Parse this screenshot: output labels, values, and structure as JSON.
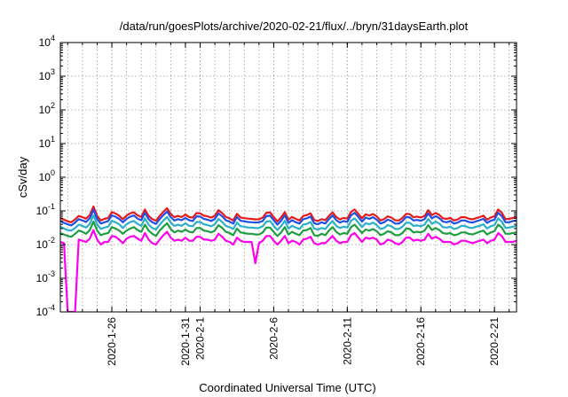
{
  "chart_data": {
    "type": "line",
    "title": "/data/run/goesPlots/archive/2020-02-21/flux/../bryn/31daysEarth.plot",
    "xlabel": "Coordinated Universal Time (UTC)",
    "ylabel": "cSv/day",
    "y_scale": "log",
    "ylim": [
      0.0001,
      10000
    ],
    "xlim": [
      "2020-01-22T12:00",
      "2020-02-22T12:00"
    ],
    "y_ticks": [
      {
        "value": 0.0001,
        "base": "10",
        "exp": "-4"
      },
      {
        "value": 0.001,
        "base": "10",
        "exp": "-3"
      },
      {
        "value": 0.01,
        "base": "10",
        "exp": "-2"
      },
      {
        "value": 0.1,
        "base": "10",
        "exp": "-1"
      },
      {
        "value": 1,
        "base": "10",
        "exp": "0"
      },
      {
        "value": 10,
        "base": "10",
        "exp": "1"
      },
      {
        "value": 100,
        "base": "10",
        "exp": "2"
      },
      {
        "value": 1000,
        "base": "10",
        "exp": "3"
      },
      {
        "value": 10000,
        "base": "10",
        "exp": "4"
      }
    ],
    "x_ticks": [
      {
        "date": "2020-01-26",
        "label": "2020-1-26"
      },
      {
        "date": "2020-01-31",
        "label": "2020-1-31"
      },
      {
        "date": "2020-02-01",
        "label": "2020-2-1"
      },
      {
        "date": "2020-02-06",
        "label": "2020-2-6"
      },
      {
        "date": "2020-02-11",
        "label": "2020-2-11"
      },
      {
        "date": "2020-02-16",
        "label": "2020-2-16"
      },
      {
        "date": "2020-02-21",
        "label": "2020-2-21"
      }
    ],
    "grid": true,
    "legend": "none",
    "series": [
      {
        "color": "#e41a1c",
        "x_start": "2020-01-22T12:00",
        "step_hours": 6,
        "values": [
          0.062,
          0.055,
          0.049,
          0.046,
          0.056,
          0.071,
          0.065,
          0.059,
          0.075,
          0.135,
          0.071,
          0.052,
          0.058,
          0.062,
          0.092,
          0.084,
          0.072,
          0.057,
          0.073,
          0.085,
          0.091,
          0.074,
          0.066,
          0.11,
          0.071,
          0.057,
          0.051,
          0.071,
          0.094,
          0.12,
          0.081,
          0.065,
          0.071,
          0.066,
          0.078,
          0.066,
          0.063,
          0.086,
          0.085,
          0.072,
          0.069,
          0.063,
          0.072,
          0.105,
          0.086,
          0.066,
          0.06,
          0.052,
          0.082,
          0.064,
          0.061,
          0.059,
          0.058,
          0.056,
          0.057,
          0.063,
          0.088,
          0.09,
          0.066,
          0.049,
          0.064,
          0.092,
          0.055,
          0.066,
          0.058,
          0.052,
          0.071,
          0.075,
          0.085,
          0.054,
          0.05,
          0.057,
          0.053,
          0.071,
          0.091,
          0.066,
          0.056,
          0.062,
          0.059,
          0.093,
          0.11,
          0.082,
          0.06,
          0.079,
          0.073,
          0.081,
          0.069,
          0.052,
          0.057,
          0.069,
          0.063,
          0.053,
          0.052,
          0.062,
          0.082,
          0.08,
          0.065,
          0.068,
          0.064,
          0.071,
          0.105,
          0.075,
          0.087,
          0.076,
          0.06,
          0.058,
          0.062,
          0.052,
          0.056,
          0.065,
          0.065,
          0.059,
          0.056,
          0.061,
          0.066,
          0.072,
          0.055,
          0.064,
          0.069,
          0.11,
          0.088,
          0.057,
          0.058,
          0.062,
          0.065,
          0.071
        ]
      },
      {
        "color": "#1f50e6",
        "x_start": "2020-01-22T12:00",
        "step_hours": 6,
        "values": [
          0.05,
          0.044,
          0.04,
          0.037,
          0.045,
          0.057,
          0.052,
          0.047,
          0.06,
          0.108,
          0.057,
          0.042,
          0.046,
          0.05,
          0.074,
          0.067,
          0.058,
          0.046,
          0.058,
          0.068,
          0.073,
          0.059,
          0.053,
          0.088,
          0.057,
          0.046,
          0.041,
          0.057,
          0.075,
          0.096,
          0.065,
          0.052,
          0.057,
          0.053,
          0.062,
          0.053,
          0.05,
          0.069,
          0.068,
          0.058,
          0.055,
          0.05,
          0.058,
          0.084,
          0.069,
          0.053,
          0.048,
          0.042,
          0.066,
          0.051,
          0.049,
          0.047,
          0.046,
          0.045,
          0.046,
          0.05,
          0.07,
          0.072,
          0.053,
          0.039,
          0.051,
          0.074,
          0.044,
          0.053,
          0.046,
          0.042,
          0.057,
          0.06,
          0.068,
          0.043,
          0.04,
          0.046,
          0.042,
          0.057,
          0.073,
          0.053,
          0.045,
          0.05,
          0.047,
          0.074,
          0.088,
          0.066,
          0.048,
          0.063,
          0.058,
          0.065,
          0.055,
          0.042,
          0.046,
          0.055,
          0.05,
          0.042,
          0.042,
          0.05,
          0.066,
          0.064,
          0.052,
          0.054,
          0.051,
          0.057,
          0.084,
          0.06,
          0.07,
          0.061,
          0.048,
          0.046,
          0.05,
          0.042,
          0.045,
          0.052,
          0.052,
          0.047,
          0.045,
          0.049,
          0.053,
          0.058,
          0.044,
          0.051,
          0.055,
          0.088,
          0.07,
          0.046,
          0.046,
          0.05,
          0.052,
          0.057
        ]
      },
      {
        "color": "#2ab0c8",
        "x_start": "2020-01-22T12:00",
        "step_hours": 6,
        "values": [
          0.034,
          0.03,
          0.027,
          0.026,
          0.031,
          0.039,
          0.036,
          0.032,
          0.041,
          0.074,
          0.039,
          0.029,
          0.032,
          0.034,
          0.051,
          0.046,
          0.04,
          0.031,
          0.04,
          0.047,
          0.05,
          0.041,
          0.036,
          0.06,
          0.039,
          0.031,
          0.028,
          0.039,
          0.052,
          0.066,
          0.045,
          0.036,
          0.039,
          0.036,
          0.043,
          0.036,
          0.035,
          0.047,
          0.047,
          0.04,
          0.038,
          0.035,
          0.04,
          0.058,
          0.047,
          0.036,
          0.033,
          0.029,
          0.045,
          0.035,
          0.034,
          0.032,
          0.032,
          0.031,
          0.031,
          0.035,
          0.048,
          0.05,
          0.036,
          0.027,
          0.035,
          0.051,
          0.03,
          0.036,
          0.032,
          0.029,
          0.039,
          0.041,
          0.047,
          0.03,
          0.028,
          0.031,
          0.029,
          0.039,
          0.05,
          0.036,
          0.031,
          0.034,
          0.032,
          0.051,
          0.06,
          0.045,
          0.033,
          0.043,
          0.04,
          0.045,
          0.038,
          0.029,
          0.031,
          0.038,
          0.035,
          0.029,
          0.029,
          0.034,
          0.045,
          0.044,
          0.036,
          0.037,
          0.035,
          0.039,
          0.058,
          0.041,
          0.048,
          0.042,
          0.033,
          0.032,
          0.034,
          0.029,
          0.031,
          0.036,
          0.036,
          0.032,
          0.031,
          0.034,
          0.036,
          0.04,
          0.03,
          0.035,
          0.038,
          0.06,
          0.048,
          0.031,
          0.032,
          0.034,
          0.036,
          0.039
        ]
      },
      {
        "color": "#1e9e40",
        "x_start": "2020-01-22T12:00",
        "step_hours": 6,
        "values": [
          0.022,
          0.02,
          0.018,
          0.017,
          0.021,
          0.026,
          0.024,
          0.021,
          0.027,
          0.048,
          0.026,
          0.019,
          0.021,
          0.022,
          0.033,
          0.03,
          0.026,
          0.021,
          0.026,
          0.03,
          0.033,
          0.027,
          0.024,
          0.039,
          0.026,
          0.021,
          0.018,
          0.026,
          0.034,
          0.043,
          0.029,
          0.023,
          0.026,
          0.024,
          0.028,
          0.024,
          0.023,
          0.031,
          0.031,
          0.026,
          0.025,
          0.023,
          0.026,
          0.038,
          0.031,
          0.024,
          0.022,
          0.019,
          0.03,
          0.023,
          0.022,
          0.021,
          0.021,
          0.02,
          0.02,
          0.023,
          0.032,
          0.032,
          0.024,
          0.018,
          0.023,
          0.033,
          0.02,
          0.024,
          0.021,
          0.019,
          0.026,
          0.027,
          0.031,
          0.019,
          0.018,
          0.021,
          0.019,
          0.026,
          0.033,
          0.024,
          0.02,
          0.022,
          0.021,
          0.033,
          0.039,
          0.029,
          0.022,
          0.028,
          0.026,
          0.029,
          0.025,
          0.019,
          0.021,
          0.025,
          0.023,
          0.019,
          0.019,
          0.022,
          0.03,
          0.029,
          0.023,
          0.024,
          0.023,
          0.026,
          0.038,
          0.027,
          0.031,
          0.027,
          0.022,
          0.021,
          0.022,
          0.019,
          0.02,
          0.023,
          0.023,
          0.021,
          0.02,
          0.022,
          0.024,
          0.026,
          0.02,
          0.023,
          0.025,
          0.039,
          0.032,
          0.021,
          0.021,
          0.022,
          0.023,
          0.026
        ]
      },
      {
        "color": "#ff00ee",
        "x_start": "2020-01-22T12:00",
        "step_hours": 6,
        "values": [
          0.012,
          0.011,
          0.0001,
          0.0001,
          0.0001,
          0.014,
          0.013,
          0.012,
          0.015,
          0.027,
          0.014,
          0.01,
          0.012,
          0.012,
          0.018,
          0.017,
          0.014,
          0.011,
          0.015,
          0.017,
          0.018,
          0.015,
          0.013,
          0.022,
          0.014,
          0.011,
          0.01,
          0.014,
          0.019,
          0.024,
          0.016,
          0.013,
          0.014,
          0.013,
          0.016,
          0.013,
          0.013,
          0.017,
          0.017,
          0.014,
          0.014,
          0.013,
          0.014,
          0.021,
          0.017,
          0.013,
          0.012,
          0.01,
          0.016,
          0.013,
          0.012,
          0.012,
          0.012,
          0.0028,
          0.011,
          0.013,
          0.018,
          0.018,
          0.013,
          0.01,
          0.013,
          0.018,
          0.011,
          0.013,
          0.012,
          0.01,
          0.014,
          0.015,
          0.017,
          0.011,
          0.01,
          0.011,
          0.011,
          0.014,
          0.018,
          0.013,
          0.011,
          0.012,
          0.012,
          0.019,
          0.022,
          0.016,
          0.012,
          0.016,
          0.015,
          0.016,
          0.014,
          0.01,
          0.011,
          0.014,
          0.013,
          0.011,
          0.01,
          0.012,
          0.016,
          0.016,
          0.013,
          0.014,
          0.013,
          0.014,
          0.021,
          0.015,
          0.017,
          0.015,
          0.012,
          0.012,
          0.012,
          0.01,
          0.011,
          0.013,
          0.013,
          0.012,
          0.011,
          0.012,
          0.013,
          0.014,
          0.011,
          0.013,
          0.014,
          0.022,
          0.018,
          0.012,
          0.012,
          0.012,
          0.013,
          0.014
        ]
      }
    ]
  }
}
